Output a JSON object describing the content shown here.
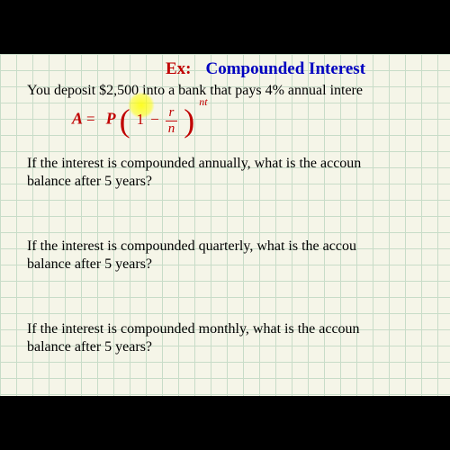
{
  "title": {
    "ex": "Ex:",
    "main": "Compounded Interest"
  },
  "problem": "You deposit $2,500 into a bank that pays 4% annual intere",
  "formula": {
    "A": "A",
    "eq": "=",
    "P": "P",
    "lparen": "(",
    "one": "1",
    "minus": "−",
    "num": "r",
    "den": "n",
    "rparen": ")",
    "exp": "nt"
  },
  "q1": {
    "l1": "If the interest is compounded annually, what is the accoun",
    "l2": "balance after 5 years?"
  },
  "q2": {
    "l1": "If the interest is compounded quarterly, what is the accou",
    "l2": "balance after 5 years?"
  },
  "q3": {
    "l1": "If the interest is compounded monthly, what is the accoun",
    "l2": "balance after 5 years?"
  },
  "colors": {
    "grid": "#c8dcc8",
    "paper": "#f5f5e8",
    "red": "#c00000",
    "blue": "#0000c0",
    "highlight": "#ffff00"
  }
}
